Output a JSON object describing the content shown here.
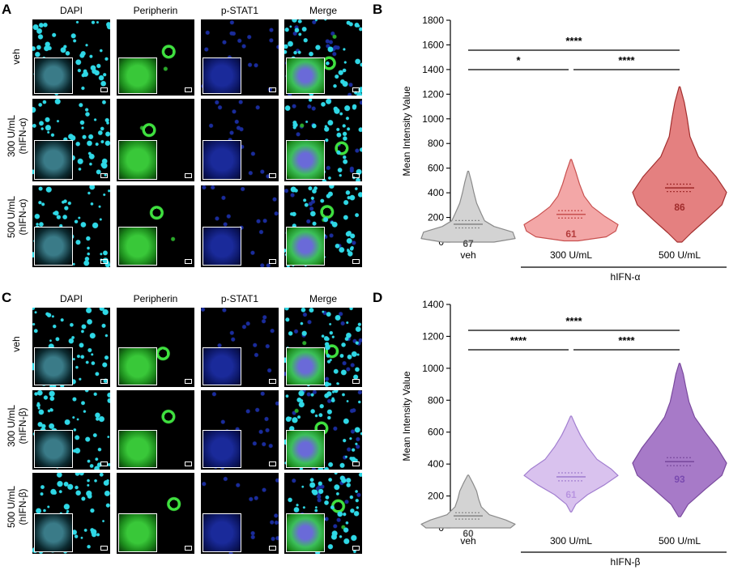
{
  "panels": {
    "A": {
      "letter": "A",
      "channels": [
        {
          "label": "DAPI",
          "color": "#1fc6d6"
        },
        {
          "label": "Peripherin",
          "color": "#3cc43c"
        },
        {
          "label": "p-STAT1",
          "color": "#2c6fd1"
        },
        {
          "label": "Merge",
          "color": "#000000"
        }
      ],
      "rows": [
        {
          "line1": "veh",
          "line2": ""
        },
        {
          "line1": "300 U/mL",
          "line2": "(hIFN-α)"
        },
        {
          "line1": "500 U/mL",
          "line2": "(hIFN-α)"
        }
      ]
    },
    "C": {
      "letter": "C",
      "channels": [
        {
          "label": "DAPI",
          "color": "#1fc6d6"
        },
        {
          "label": "Peripherin",
          "color": "#3cc43c"
        },
        {
          "label": "p-STAT1",
          "color": "#2c6fd1"
        },
        {
          "label": "Merge",
          "color": "#000000"
        }
      ],
      "rows": [
        {
          "line1": "veh",
          "line2": ""
        },
        {
          "line1": "300 U/mL",
          "line2": "(hIFN-β)"
        },
        {
          "line1": "500 U/mL",
          "line2": "(hIFN-β)"
        }
      ]
    }
  },
  "chart_data": [
    {
      "panel": "B",
      "type": "violin",
      "ylabel": "Mean Intensity Value",
      "ylim": [
        0,
        1800
      ],
      "yticks": [
        0,
        200,
        400,
        600,
        800,
        1000,
        1200,
        1400,
        1600,
        1800
      ],
      "categories": [
        "veh",
        "300 U/mL",
        "500 U/mL"
      ],
      "group_label": "hIFN-α",
      "series": [
        {
          "category": "veh",
          "n": "67",
          "median": 145,
          "q1": 115,
          "q3": 175,
          "min": 0,
          "max": 575,
          "fill": "#d3d3d3",
          "stroke": "#8a8a8a",
          "label_color": "#555555"
        },
        {
          "category": "300 U/mL",
          "n": "61",
          "median": 225,
          "q1": 195,
          "q3": 255,
          "min": 10,
          "max": 670,
          "fill": "#f3a7a7",
          "stroke": "#c8504f",
          "label_color": "#b43c3c"
        },
        {
          "category": "500 U/mL",
          "n": "86",
          "median": 440,
          "q1": 410,
          "q3": 470,
          "min": 0,
          "max": 1260,
          "fill": "#e48080",
          "stroke": "#a32f2f",
          "label_color": "#a02c2c"
        }
      ],
      "significance": [
        {
          "from": "veh",
          "to": "300 U/mL",
          "label": "*"
        },
        {
          "from": "300 U/mL",
          "to": "500 U/mL",
          "label": "****"
        },
        {
          "from": "veh",
          "to": "500 U/mL",
          "label": "****"
        }
      ]
    },
    {
      "panel": "D",
      "type": "violin",
      "ylabel": "Mean Intensity Value",
      "ylim": [
        0,
        1400
      ],
      "yticks": [
        0,
        200,
        400,
        600,
        800,
        1000,
        1200,
        1400
      ],
      "categories": [
        "veh",
        "300 U/mL",
        "500 U/mL"
      ],
      "group_label": "hIFN-β",
      "series": [
        {
          "category": "veh",
          "n": "60",
          "median": 75,
          "q1": 55,
          "q3": 95,
          "min": 0,
          "max": 330,
          "fill": "#d3d3d3",
          "stroke": "#8a8a8a",
          "label_color": "#555555"
        },
        {
          "category": "300 U/mL",
          "n": "61",
          "median": 320,
          "q1": 295,
          "q3": 345,
          "min": 100,
          "max": 700,
          "fill": "#d9c2ee",
          "stroke": "#a27fd0",
          "label_color": "#b894e0"
        },
        {
          "category": "500 U/mL",
          "n": "93",
          "median": 415,
          "q1": 390,
          "q3": 440,
          "min": 70,
          "max": 1030,
          "fill": "#a77ac8",
          "stroke": "#7a4a9e",
          "label_color": "#7a4ab0"
        }
      ],
      "significance": [
        {
          "from": "veh",
          "to": "300 U/mL",
          "label": "****"
        },
        {
          "from": "300 U/mL",
          "to": "500 U/mL",
          "label": "****"
        },
        {
          "from": "veh",
          "to": "500 U/mL",
          "label": "****"
        }
      ]
    }
  ]
}
